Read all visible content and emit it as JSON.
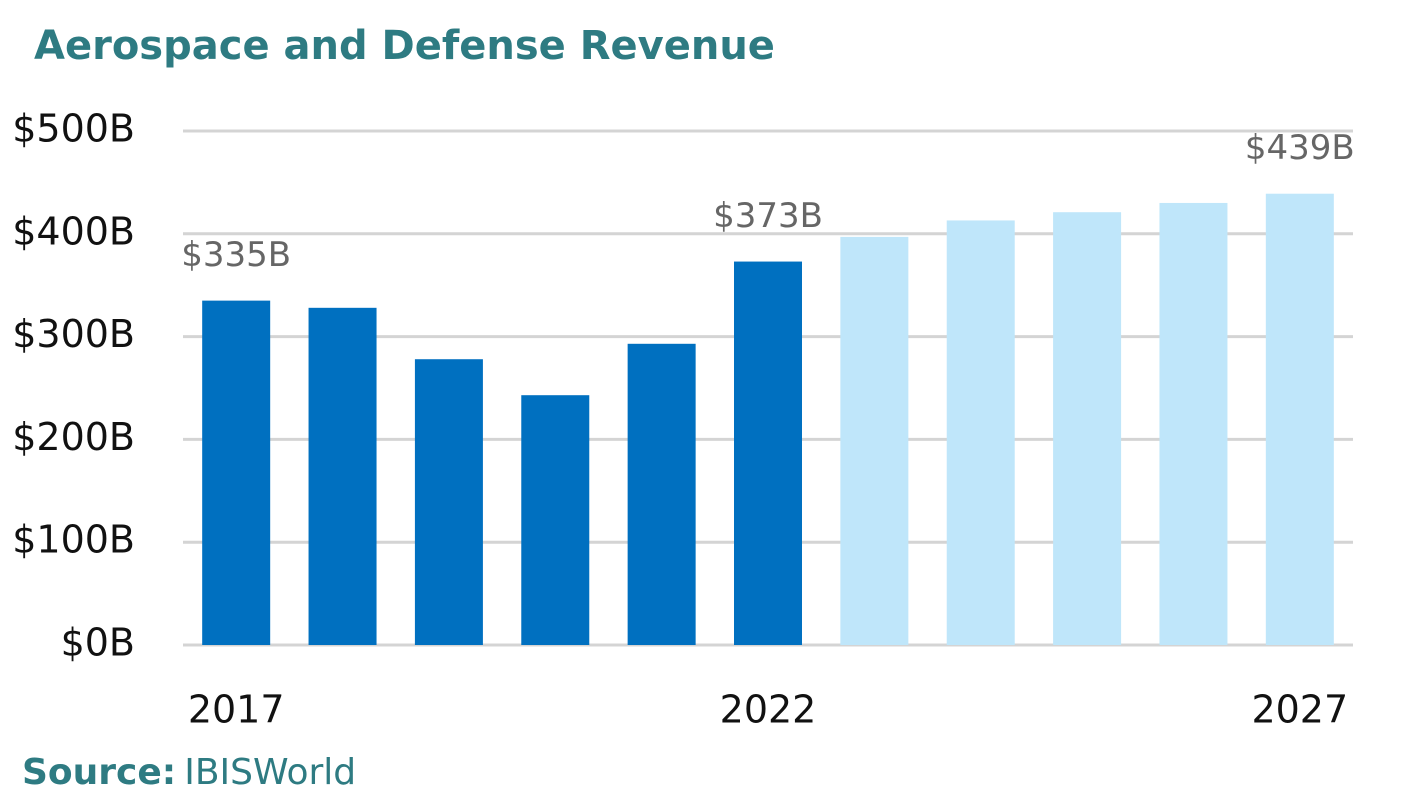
{
  "chart_data": {
    "type": "bar",
    "title": "Aerospace and Defense Revenue",
    "categories": [
      "2017",
      null,
      null,
      null,
      null,
      "2022",
      null,
      null,
      null,
      null,
      "2027"
    ],
    "values": [
      335,
      328,
      278,
      243,
      293,
      373,
      397,
      413,
      421,
      430,
      439
    ],
    "value_labels": [
      "$335B",
      null,
      null,
      null,
      null,
      "$373B",
      null,
      null,
      null,
      null,
      "$439B"
    ],
    "colors": [
      "#0070c0",
      "#0070c0",
      "#0070c0",
      "#0070c0",
      "#0070c0",
      "#0070c0",
      "#bfe6fa",
      "#bfe6fa",
      "#bfe6fa",
      "#bfe6fa",
      "#bfe6fa"
    ],
    "ylim": [
      0,
      500
    ],
    "yticks": [
      {
        "value": 0,
        "label": "$0B"
      },
      {
        "value": 100,
        "label": "$100B"
      },
      {
        "value": 200,
        "label": "$200B"
      },
      {
        "value": 300,
        "label": "$300B"
      },
      {
        "value": 400,
        "label": "$400B"
      },
      {
        "value": 500,
        "label": "$500B"
      }
    ],
    "grid": true,
    "source_label": "Source:",
    "source": "IBISWorld"
  }
}
